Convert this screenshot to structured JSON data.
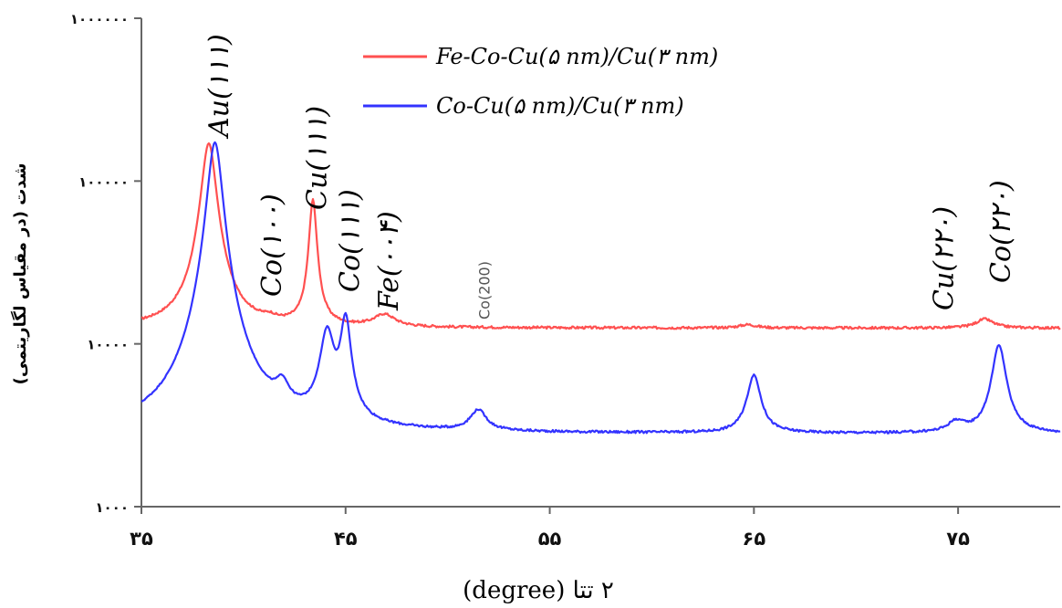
{
  "chart_data": {
    "type": "line",
    "xlabel": "۲ تتا (degree)",
    "ylabel": "شدت (در مقیاس لگاریتمی)",
    "xlim": [
      35,
      80
    ],
    "ylim": [
      1000,
      1000000
    ],
    "yscale": "log",
    "x_ticks": [
      {
        "value": 35,
        "label": "۳۵"
      },
      {
        "value": 45,
        "label": "۴۵"
      },
      {
        "value": 55,
        "label": "۵۵"
      },
      {
        "value": 65,
        "label": "۶۵"
      },
      {
        "value": 75,
        "label": "۷۵"
      }
    ],
    "y_ticks": [
      {
        "value": 1000,
        "label": "۱۰۰۰"
      },
      {
        "value": 10000,
        "label": "۱۰۰۰۰"
      },
      {
        "value": 100000,
        "label": "۱۰۰۰۰۰"
      },
      {
        "value": 1000000,
        "label": "۱۰۰۰۰۰۰"
      }
    ],
    "grid": false,
    "legend_position": "top-center",
    "series": [
      {
        "name": "Fe-Co-Cu(۵ nm)/Cu(۳ nm)",
        "color": "#ff5050",
        "baseline": 12500,
        "peaks": [
          {
            "x": 38.3,
            "height": 158000,
            "width": 0.35
          },
          {
            "x": 41.3,
            "height": 700,
            "width": 0.3
          },
          {
            "x": 43.4,
            "height": 64000,
            "width": 0.18
          },
          {
            "x": 46.9,
            "height": 2400,
            "width": 0.6
          },
          {
            "x": 64.7,
            "height": 600,
            "width": 0.5
          },
          {
            "x": 76.3,
            "height": 1700,
            "width": 0.5
          }
        ]
      },
      {
        "name": "Co-Cu(۵ nm)/Cu(۳ nm)",
        "color": "#3333ff",
        "baseline": 2800,
        "peaks": [
          {
            "x": 38.6,
            "height": 170000,
            "width": 0.35
          },
          {
            "x": 41.9,
            "height": 1500,
            "width": 0.35
          },
          {
            "x": 44.1,
            "height": 8500,
            "width": 0.35
          },
          {
            "x": 45.0,
            "height": 11000,
            "width": 0.25
          },
          {
            "x": 51.5,
            "height": 1000,
            "width": 0.45
          },
          {
            "x": 65.0,
            "height": 3600,
            "width": 0.35
          },
          {
            "x": 74.9,
            "height": 450,
            "width": 0.45
          },
          {
            "x": 77.0,
            "height": 7000,
            "width": 0.35
          }
        ]
      }
    ],
    "annotations": [
      {
        "text": "Au(۱۱۱)",
        "x": 38.8,
        "style": "peak"
      },
      {
        "text": "Co(۱۰۰)",
        "x": 41.4,
        "style": "peak"
      },
      {
        "text": "Cu(۱۱۱)",
        "x": 43.6,
        "style": "peak"
      },
      {
        "text": "Co(۱۱۱)",
        "x": 45.2,
        "style": "peak"
      },
      {
        "text": "Fe(۰۰۴)",
        "x": 47.1,
        "style": "peak"
      },
      {
        "text": "Co(200)",
        "x": 51.6,
        "style": "small"
      },
      {
        "text": "Cu(۲۲۰)",
        "x": 74.3,
        "style": "peak"
      },
      {
        "text": "Co(۲۲۰)",
        "x": 77.1,
        "style": "peak"
      }
    ]
  }
}
